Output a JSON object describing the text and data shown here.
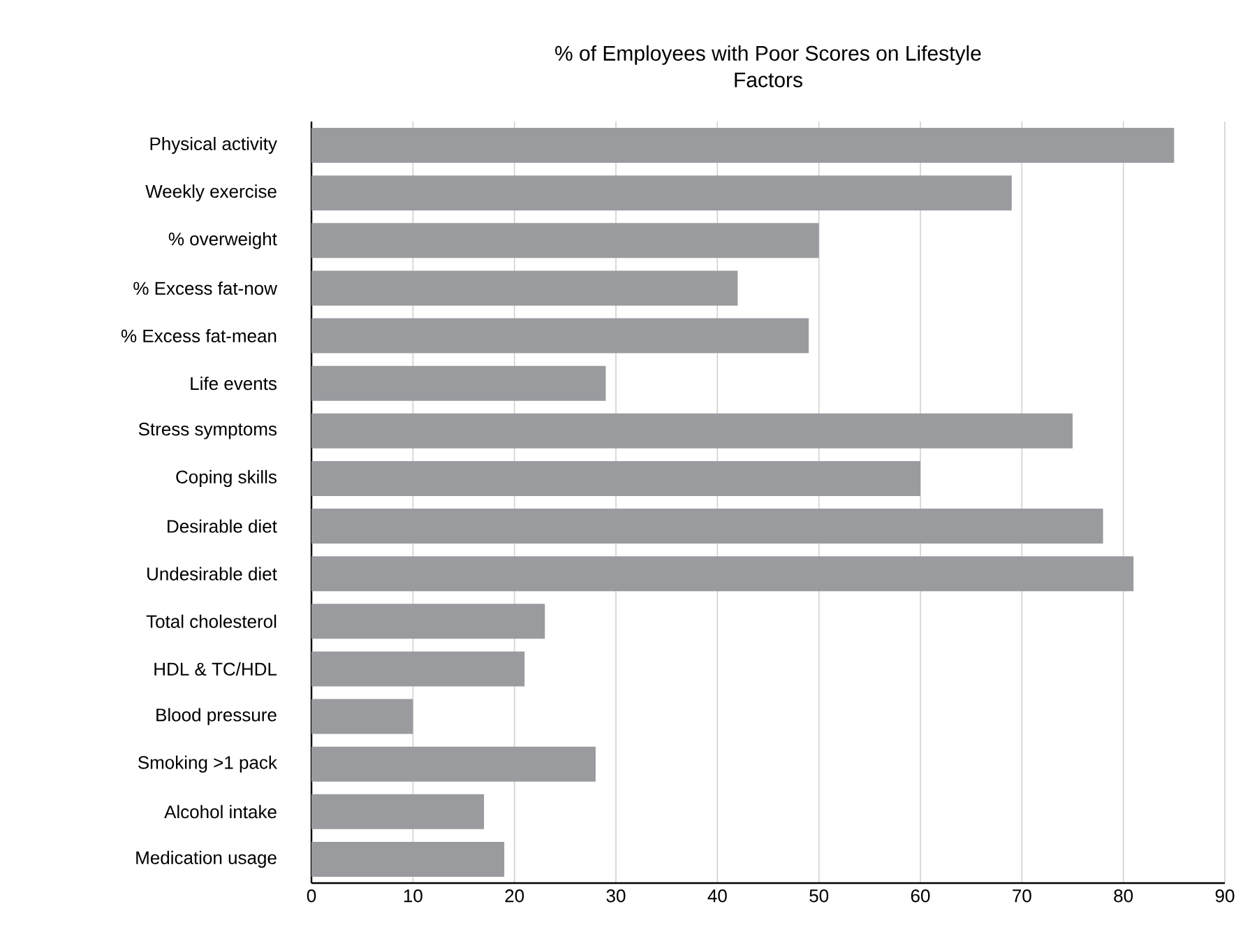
{
  "chart_data": {
    "type": "bar",
    "orientation": "horizontal",
    "title": "% of Employees with Poor Scores on Lifestyle Factors",
    "categories": [
      "Physical activity",
      "Weekly exercise",
      "% overweight",
      "% Excess fat-now",
      "% Excess fat-mean",
      "Life events",
      "Stress symptoms",
      "Coping skills",
      "Desirable diet",
      "Undesirable diet",
      "Total cholesterol",
      "HDL & TC/HDL",
      "Blood pressure",
      "Smoking >1 pack",
      "Alcohol intake",
      "Medication usage"
    ],
    "values": [
      85,
      69,
      50,
      42,
      49,
      29,
      75,
      60,
      78,
      81,
      23,
      21,
      10,
      28,
      17,
      19
    ],
    "color": "#9a9b9f",
    "xlim": [
      0,
      90
    ],
    "xticks": [
      0,
      10,
      20,
      30,
      40,
      50,
      60,
      70,
      80,
      90
    ],
    "grid": "x"
  }
}
